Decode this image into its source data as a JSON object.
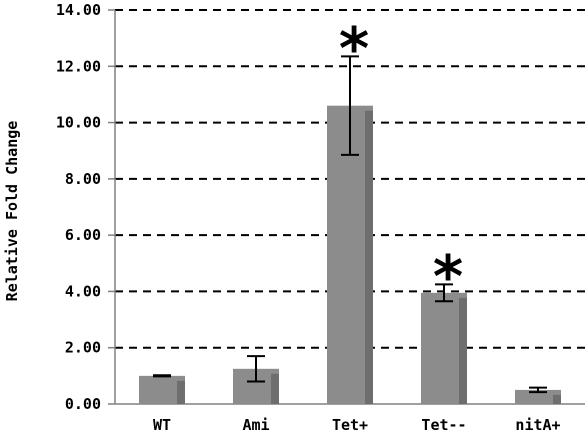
{
  "chart_data": {
    "type": "bar",
    "categories": [
      "WT",
      "Ami",
      "Tet+",
      "Tet--",
      "nitA+"
    ],
    "values": [
      1.0,
      1.25,
      10.6,
      3.95,
      0.5
    ],
    "error": [
      0.02,
      0.45,
      1.75,
      0.3,
      0.08
    ],
    "significance": [
      "",
      "",
      "*",
      "*",
      ""
    ],
    "ylabel": "Relative Fold Change",
    "xlabel": "",
    "ylim": [
      0,
      14
    ],
    "yticks": [
      "0.00",
      "2.00",
      "4.00",
      "6.00",
      "8.00",
      "10.00",
      "12.00",
      "14.00"
    ],
    "grid": "dashed horizontal",
    "colors": {
      "bar": "#8c8c8c",
      "bar_shadow": "#6e6e6e",
      "grid": "#000000",
      "axis": "#808080"
    }
  }
}
